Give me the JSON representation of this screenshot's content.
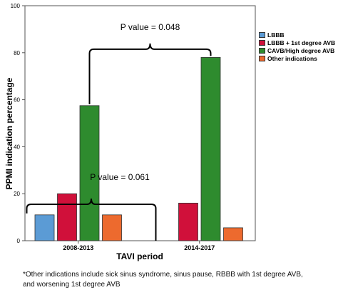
{
  "chart_data": {
    "type": "bar",
    "xlabel": "TAVI period",
    "ylabel": "PPMI indication percentage",
    "ylim": [
      0,
      100
    ],
    "yticks": [
      0,
      20,
      40,
      60,
      80,
      100
    ],
    "categories": [
      "2008-2013",
      "2014-2017"
    ],
    "series": [
      {
        "name": "LBBB",
        "color": "#5b9bd5",
        "values": [
          11,
          null
        ]
      },
      {
        "name": "LBBB + 1st degree AVB",
        "color": "#d0103a",
        "values": [
          20,
          16
        ]
      },
      {
        "name": "CAVB/High degree AVB",
        "color": "#2e8b2e",
        "values": [
          57.5,
          78
        ]
      },
      {
        "name": "Other indications",
        "color": "#ed6a2e",
        "values": [
          11,
          5.5
        ]
      }
    ],
    "legend_position": "right",
    "annotations": [
      {
        "text": "P value = 0.048",
        "between": [
          "CAVB/High degree AVB 2008-2013",
          "CAVB/High degree AVB 2014-2017"
        ]
      },
      {
        "text": "P value = 0.061",
        "between": [
          "LBBB 2008-2013",
          "Other indications 2008-2013"
        ]
      }
    ]
  },
  "footnote": [
    "*Other indications include sick sinus syndrome, sinus pause, RBBB with 1st degree AVB,",
    "and worsening 1st degree AVB"
  ]
}
